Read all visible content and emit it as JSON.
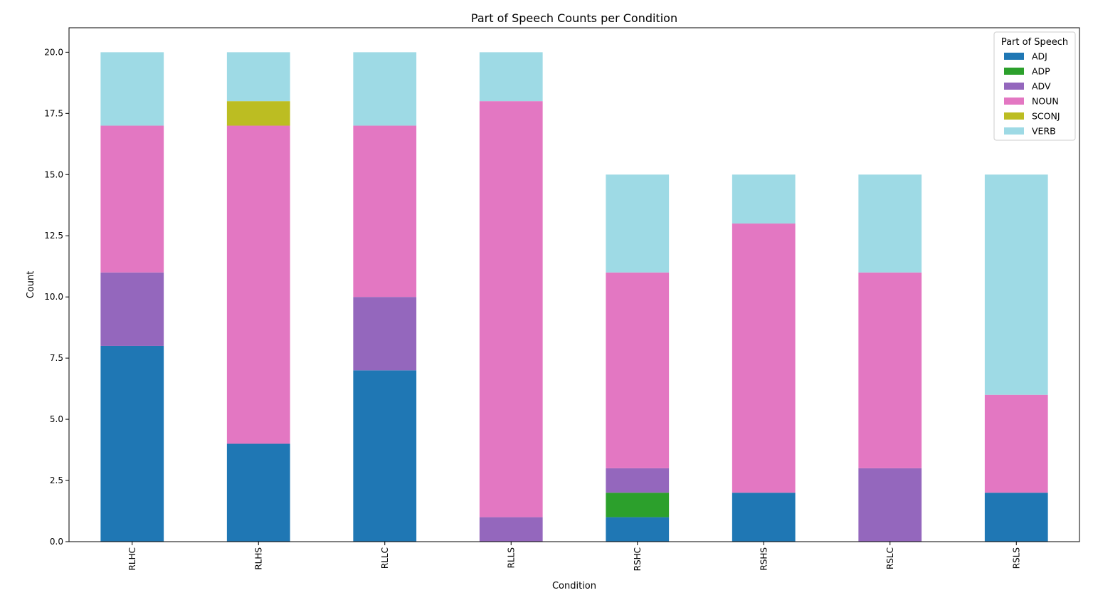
{
  "chart_data": {
    "type": "bar",
    "stacked": true,
    "title": "Part of Speech Counts per Condition",
    "xlabel": "Condition",
    "ylabel": "Count",
    "ylim": [
      0,
      21
    ],
    "yticks": [
      0.0,
      2.5,
      5.0,
      7.5,
      10.0,
      12.5,
      15.0,
      17.5,
      20.0
    ],
    "ytick_labels": [
      "0.0",
      "2.5",
      "5.0",
      "7.5",
      "10.0",
      "12.5",
      "15.0",
      "17.5",
      "20.0"
    ],
    "categories": [
      "RLHC",
      "RLHS",
      "RLLC",
      "RLLS",
      "RSHC",
      "RSHS",
      "RSLC",
      "RSLS"
    ],
    "legend": {
      "title": "Part of Speech",
      "placement": "top-right"
    },
    "series": [
      {
        "name": "ADJ",
        "color": "#1f77b4",
        "values": [
          8,
          4,
          7,
          0,
          1,
          2,
          0,
          2
        ]
      },
      {
        "name": "ADP",
        "color": "#2ca02c",
        "values": [
          0,
          0,
          0,
          0,
          1,
          0,
          0,
          0
        ]
      },
      {
        "name": "ADV",
        "color": "#9467bd",
        "values": [
          3,
          0,
          3,
          1,
          1,
          0,
          3,
          0
        ]
      },
      {
        "name": "NOUN",
        "color": "#e377c2",
        "values": [
          6,
          13,
          7,
          17,
          8,
          11,
          8,
          4
        ]
      },
      {
        "name": "SCONJ",
        "color": "#bcbd22",
        "values": [
          0,
          1,
          0,
          0,
          0,
          0,
          0,
          0
        ]
      },
      {
        "name": "VERB",
        "color": "#9edae5",
        "values": [
          3,
          2,
          3,
          2,
          4,
          2,
          4,
          9
        ]
      }
    ]
  }
}
